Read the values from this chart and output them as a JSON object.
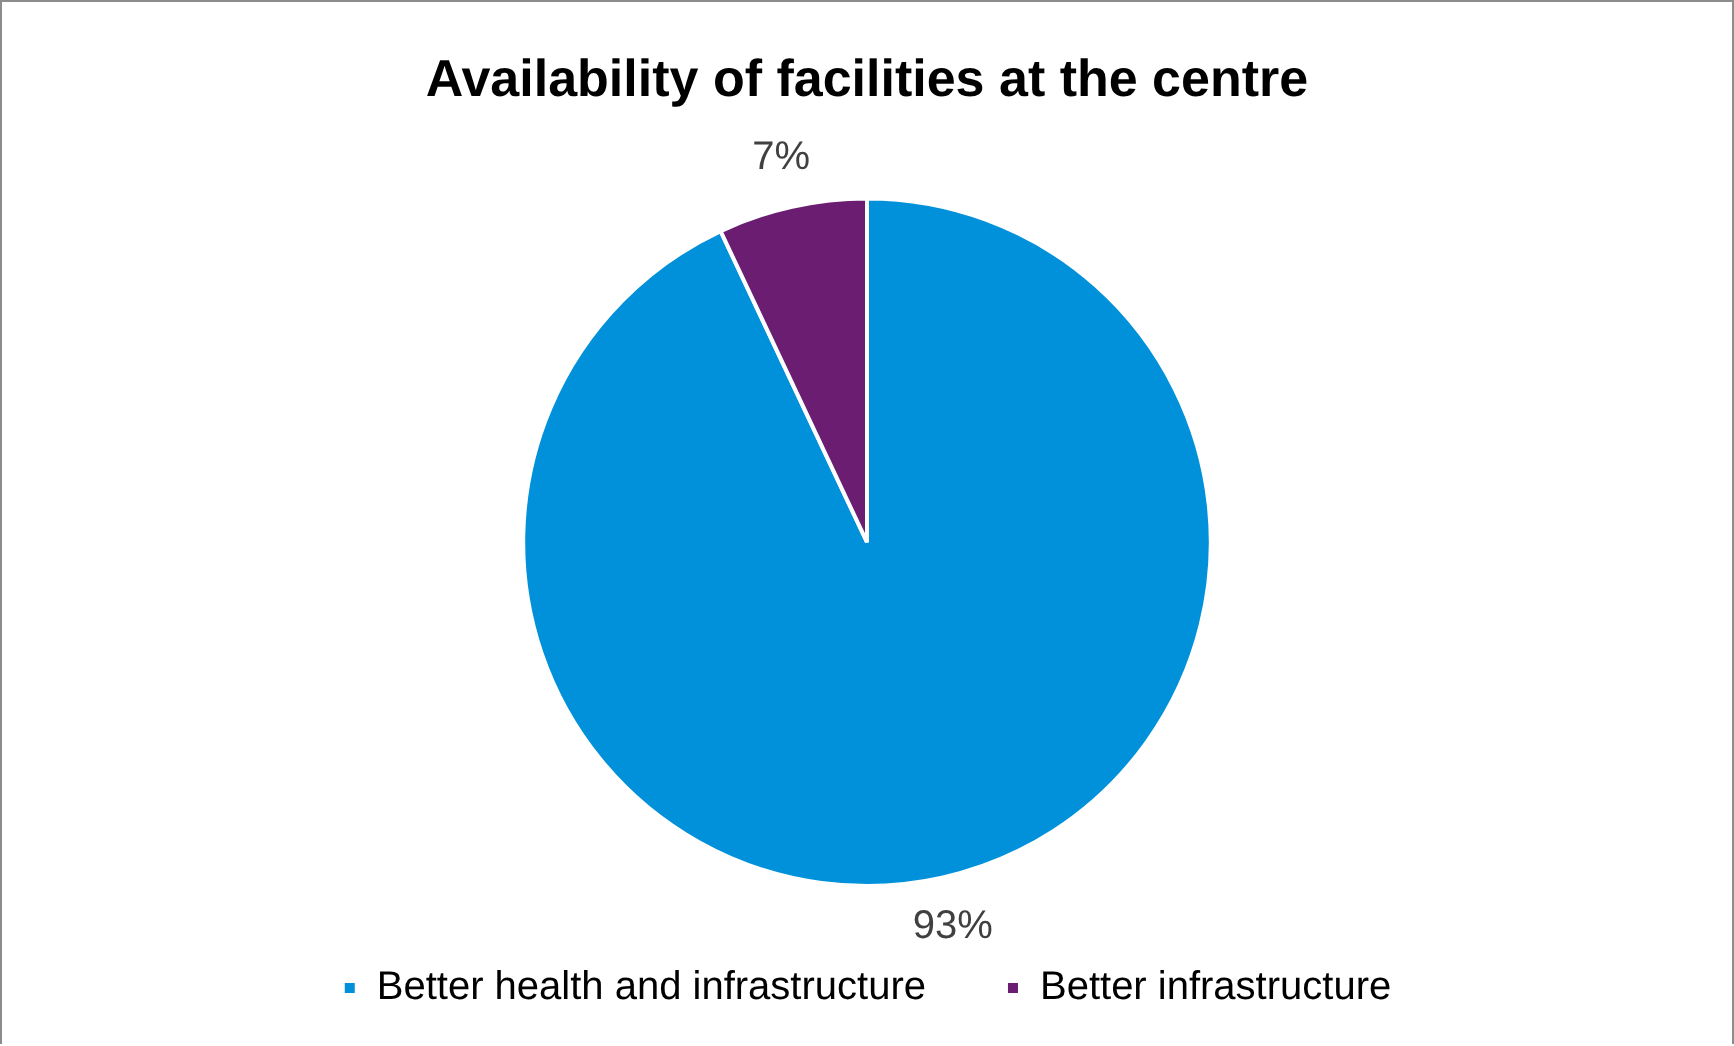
{
  "chart_data": {
    "type": "pie",
    "title": "Availability of facilities at the centre",
    "categories": [
      "Better health and infrastructure",
      "Better infrastructure"
    ],
    "values": [
      93,
      7
    ],
    "colors": [
      "#0091da",
      "#6b1d72"
    ],
    "value_labels": [
      "93%",
      "7%"
    ],
    "legend": "bottom"
  }
}
